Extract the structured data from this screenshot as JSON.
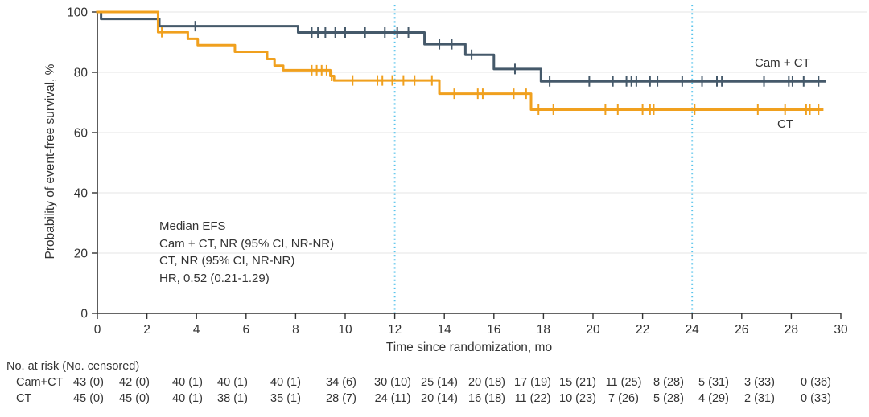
{
  "chart_data": {
    "type": "line",
    "variant": "kaplan-meier-step",
    "title": "",
    "xlabel": "Time since randomization, mo",
    "ylabel": "Probability of event-free survival, %",
    "xlim": [
      0,
      30
    ],
    "ylim": [
      0,
      100
    ],
    "x_ticks": [
      0,
      2,
      4,
      6,
      8,
      10,
      12,
      14,
      16,
      18,
      20,
      22,
      24,
      26,
      28,
      30
    ],
    "y_ticks": [
      0,
      20,
      40,
      60,
      80,
      100
    ],
    "grid": "horizontal-light",
    "gridline_color": "#ebebeb",
    "axis_color": "#333333",
    "reference_lines_x": [
      12,
      24
    ],
    "reference_line_color": "#58c4ec",
    "annotation": {
      "lines": [
        "Median EFS",
        "Cam + CT, NR (95% CI, NR-NR)",
        "CT, NR (95% CI, NR-NR)",
        "HR, 0.52 (0.21-1.29)"
      ]
    },
    "series": [
      {
        "name": "Cam + CT",
        "color": "#45596a",
        "steps": [
          [
            0,
            100
          ],
          [
            0.15,
            97.7
          ],
          [
            2.5,
            95.3
          ],
          [
            8.1,
            93.2
          ],
          [
            13.2,
            89.3
          ],
          [
            14.85,
            85.8
          ],
          [
            16.0,
            81.1
          ],
          [
            17.9,
            77.0
          ]
        ],
        "end_x": 29.35,
        "censor_x": [
          3.95,
          8.65,
          8.9,
          9.2,
          9.6,
          10.0,
          10.8,
          11.6,
          12.1,
          12.55,
          13.8,
          14.3,
          15.1,
          16.85,
          18.25,
          19.85,
          20.8,
          21.35,
          21.55,
          21.75,
          22.3,
          22.6,
          23.6,
          24.4,
          25.0,
          25.2,
          26.9,
          27.9,
          28.05,
          28.5,
          29.1
        ]
      },
      {
        "name": "CT",
        "color": "#f0a01e",
        "steps": [
          [
            0,
            100
          ],
          [
            2.45,
            93.3
          ],
          [
            3.65,
            91.1
          ],
          [
            4.05,
            89.0
          ],
          [
            5.55,
            86.8
          ],
          [
            6.85,
            84.4
          ],
          [
            7.15,
            82.2
          ],
          [
            7.5,
            80.7
          ],
          [
            9.4,
            78.8
          ],
          [
            9.55,
            77.3
          ],
          [
            13.8,
            72.9
          ],
          [
            17.5,
            67.6
          ]
        ],
        "end_x": 29.25,
        "censor_x": [
          2.6,
          8.65,
          8.85,
          9.05,
          9.25,
          9.45,
          10.3,
          11.3,
          11.5,
          11.9,
          12.35,
          12.8,
          13.5,
          14.4,
          15.35,
          15.55,
          16.8,
          17.3,
          17.8,
          18.4,
          20.5,
          21.0,
          22.0,
          22.3,
          22.45,
          24.1,
          26.65,
          27.75,
          28.6,
          28.75,
          29.1
        ]
      }
    ],
    "risk_table": {
      "header": "No. at risk (No. censored)",
      "time_points": [
        0,
        2,
        4,
        6,
        8,
        10,
        12,
        14,
        16,
        18,
        20,
        22,
        24,
        26,
        28,
        30
      ],
      "rows": [
        {
          "label": "Cam+CT",
          "values": [
            "43 (0)",
            "42 (0)",
            "40 (1)",
            "40 (1)",
            "40 (1)",
            "34 (6)",
            "30 (10)",
            "25 (14)",
            "20 (18)",
            "17 (19)",
            "15 (21)",
            "11 (25)",
            "8 (28)",
            "5 (31)",
            "3 (33)",
            "0 (36)"
          ]
        },
        {
          "label": "CT",
          "values": [
            "45 (0)",
            "45 (0)",
            "40 (1)",
            "38 (1)",
            "35 (1)",
            "28 (7)",
            "24 (11)",
            "20 (14)",
            "16 (18)",
            "11 (22)",
            "10 (23)",
            "7 (26)",
            "5 (28)",
            "4 (29)",
            "2 (31)",
            "0 (33)"
          ]
        }
      ]
    }
  }
}
